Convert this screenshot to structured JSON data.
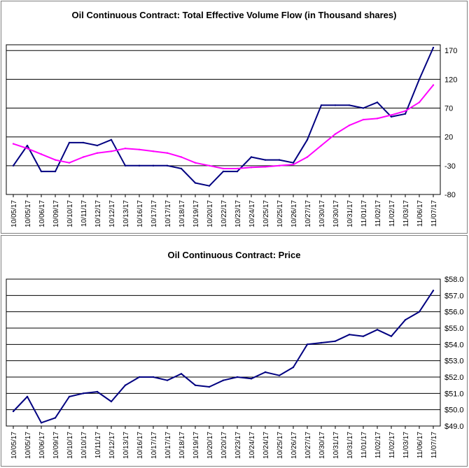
{
  "chart_data": [
    {
      "type": "line",
      "title": "Oil Continuous Contract: Total Effective Volume Flow (in Thousand shares)",
      "ylim": [
        -80,
        180
      ],
      "yticks": [
        170,
        120,
        70,
        20,
        -30,
        -80
      ],
      "x": [
        "10/05/17",
        "10/05/17",
        "10/06/17",
        "10/09/17",
        "10/10/17",
        "10/11/17",
        "10/12/17",
        "10/12/17",
        "10/13/17",
        "10/16/17",
        "10/17/17",
        "10/17/17",
        "10/18/17",
        "10/19/17",
        "10/20/17",
        "10/22/17",
        "10/23/17",
        "10/24/17",
        "10/25/17",
        "10/25/17",
        "10/26/17",
        "10/27/17",
        "10/30/17",
        "10/30/17",
        "10/31/17",
        "11/01/17",
        "11/02/17",
        "11/02/17",
        "11/03/17",
        "11/06/17",
        "11/07/17"
      ],
      "series": [
        {
          "color": "#000080",
          "values": [
            -30,
            5,
            -40,
            -40,
            10,
            10,
            5,
            15,
            -30,
            -30,
            -30,
            -30,
            -35,
            -60,
            -65,
            -40,
            -40,
            -15,
            -20,
            -20,
            -25,
            15,
            75,
            75,
            75,
            70,
            80,
            55,
            60,
            120,
            175
          ]
        },
        {
          "color": "#ff00ff",
          "values": [
            8,
            0,
            -10,
            -20,
            -25,
            -15,
            -8,
            -5,
            0,
            -2,
            -5,
            -8,
            -15,
            -25,
            -30,
            -35,
            -35,
            -33,
            -32,
            -30,
            -28,
            -15,
            5,
            25,
            40,
            50,
            52,
            58,
            65,
            80,
            110
          ]
        }
      ],
      "grid": true
    },
    {
      "type": "line",
      "title": "Oil Continuous Contract: Price",
      "ylim": [
        49.0,
        58.0
      ],
      "yticks": [
        "$58.0",
        "$57.0",
        "$56.0",
        "$55.0",
        "$54.0",
        "$53.0",
        "$52.0",
        "$51.0",
        "$50.0",
        "$49.0"
      ],
      "x": [
        "10/05/17",
        "10/05/17",
        "10/06/17",
        "10/09/17",
        "10/10/17",
        "10/10/17",
        "10/11/17",
        "10/12/17",
        "10/13/17",
        "10/16/17",
        "10/17/17",
        "10/17/17",
        "10/18/17",
        "10/19/17",
        "10/20/17",
        "10/20/17",
        "10/23/17",
        "10/24/17",
        "10/24/17",
        "10/25/17",
        "10/26/17",
        "10/27/17",
        "10/30/17",
        "10/31/17",
        "10/31/17",
        "11/01/17",
        "11/02/17",
        "11/02/17",
        "11/03/17",
        "11/06/17",
        "11/07/17"
      ],
      "series": [
        {
          "color": "#000080",
          "values": [
            49.9,
            50.8,
            49.2,
            49.5,
            50.8,
            51.0,
            51.1,
            50.5,
            51.5,
            52.0,
            52.0,
            51.8,
            52.2,
            51.5,
            51.4,
            51.8,
            52.0,
            51.9,
            52.3,
            52.1,
            52.6,
            54.0,
            54.1,
            54.2,
            54.6,
            54.5,
            54.9,
            54.5,
            55.5,
            56.0,
            57.3
          ]
        }
      ],
      "grid": true
    }
  ]
}
